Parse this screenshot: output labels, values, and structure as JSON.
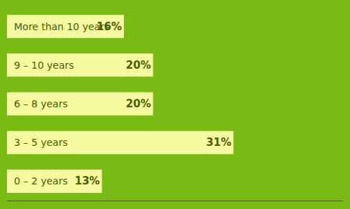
{
  "chart_data": {
    "type": "bar",
    "orientation": "horizontal",
    "categories": [
      "More than 10 years",
      "9 – 10 years",
      "6 – 8 years",
      "3 – 5 years",
      "0 – 2 years"
    ],
    "values": [
      16,
      20,
      20,
      31,
      13
    ],
    "value_labels": [
      "16%",
      "20%",
      "20%",
      "31%",
      "13%"
    ],
    "data_labels": true,
    "color": "#f5f9a0",
    "xlim": [
      0,
      46
    ],
    "tick_labels": false,
    "grid": false
  }
}
